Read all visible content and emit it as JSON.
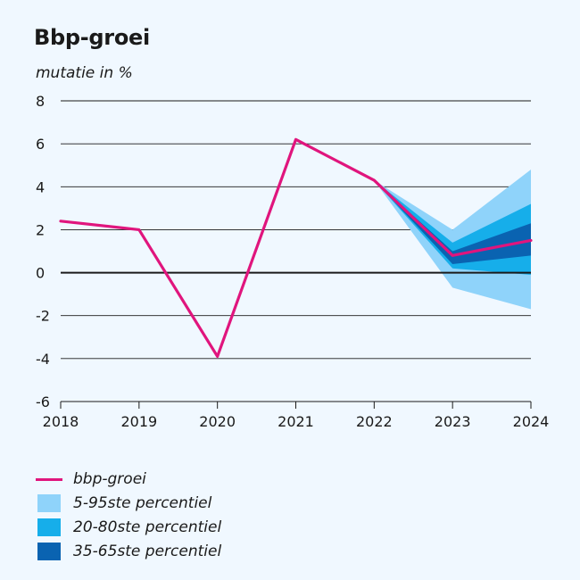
{
  "chart_data": {
    "type": "line",
    "title": "Bbp-groei",
    "ylabel": "mutatie in %",
    "xlabel": "",
    "x": [
      2018,
      2019,
      2020,
      2021,
      2022,
      2023,
      2024
    ],
    "x_tick_labels": [
      "2018",
      "2019",
      "2020",
      "2021",
      "2022",
      "2023",
      "2024"
    ],
    "ylim": [
      -6,
      8
    ],
    "y_ticks": [
      8,
      6,
      4,
      2,
      0,
      -2,
      -4,
      -6
    ],
    "y_tick_labels": [
      "8",
      "6",
      "4",
      "2",
      "0",
      "-2",
      "-4",
      "-6"
    ],
    "grid": true,
    "series": [
      {
        "name": "bbp-groei",
        "color": "#e0157d",
        "x": [
          2018,
          2019,
          2020,
          2021,
          2022,
          2023,
          2024
        ],
        "values": [
          2.4,
          2.0,
          -3.9,
          6.2,
          4.3,
          0.8,
          1.5
        ]
      }
    ],
    "bands": [
      {
        "name": "5-95ste percentiel",
        "color": "#8fd3fa",
        "x": [
          2022,
          2023,
          2024
        ],
        "lower": [
          4.3,
          -0.7,
          -1.7
        ],
        "upper": [
          4.3,
          2.0,
          4.8
        ]
      },
      {
        "name": "20-80ste percentiel",
        "color": "#16aeea",
        "x": [
          2022,
          2023,
          2024
        ],
        "lower": [
          4.3,
          0.2,
          -0.1
        ],
        "upper": [
          4.3,
          1.4,
          3.2
        ]
      },
      {
        "name": "35-65ste percentiel",
        "color": "#0a63b1",
        "x": [
          2022,
          2023,
          2024
        ],
        "lower": [
          4.3,
          0.4,
          0.8
        ],
        "upper": [
          4.3,
          1.0,
          2.3
        ]
      }
    ],
    "legend": [
      {
        "kind": "line",
        "label": "bbp-groei",
        "color": "#e0157d"
      },
      {
        "kind": "box",
        "label": "5-95ste percentiel",
        "color": "#8fd3fa"
      },
      {
        "kind": "box",
        "label": "20-80ste percentiel",
        "color": "#16aeea"
      },
      {
        "kind": "box",
        "label": "35-65ste percentiel",
        "color": "#0a63b1"
      }
    ]
  }
}
